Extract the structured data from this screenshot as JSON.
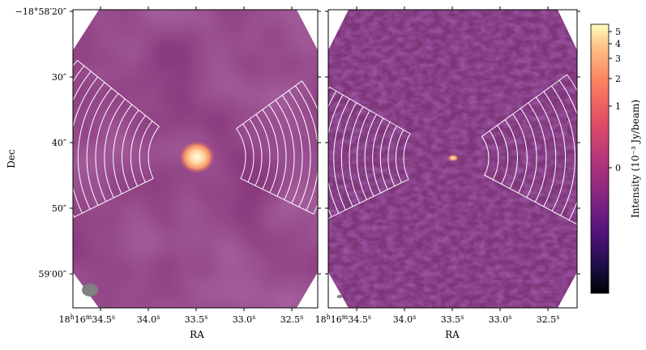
{
  "chart_data": {
    "type": "heatmap",
    "panels": [
      {
        "name": "",
        "beam": "large"
      },
      {
        "name": "",
        "beam": "small"
      }
    ],
    "xlabel": "RA",
    "ylabel": "Dec",
    "x_ticks": [
      {
        "sup": "h",
        "sup2": "m",
        "sup3": "s",
        "pre": "18",
        "mid": "16",
        "tail": "34.5",
        "label_parts": [
          "18",
          "h",
          "16",
          "m",
          "34.5",
          "s"
        ]
      },
      {
        "label": "34.0",
        "sup": "s"
      },
      {
        "label": "33.5",
        "sup": "s"
      },
      {
        "label": "33.0",
        "sup": "s"
      },
      {
        "label": "32.5",
        "sup": "s"
      }
    ],
    "x_tick_text": [
      "18h16m34.5s",
      "34.0s",
      "33.5s",
      "33.0s",
      "32.5s"
    ],
    "y_ticks": [
      "−18°58′20″",
      "30″",
      "40″",
      "50″",
      "59′00″"
    ],
    "y_tick_values_arcsec": [
      20,
      30,
      40,
      50,
      60
    ],
    "colorbar": {
      "label": "Intensity (10⁻³ Jy/beam)",
      "ticks": [
        "5",
        "4",
        "3",
        "2",
        "1",
        "0"
      ],
      "tick_values": [
        5,
        4,
        3,
        2,
        1,
        0
      ],
      "colormap": "magma"
    },
    "source": {
      "ra": "33.5",
      "dec_arcsec": 42.5
    },
    "colors": {
      "background_map": "#8a3a7e",
      "peak": "#fff4d0",
      "wedge_lines": "#ffffff",
      "beam": "#808080"
    }
  }
}
